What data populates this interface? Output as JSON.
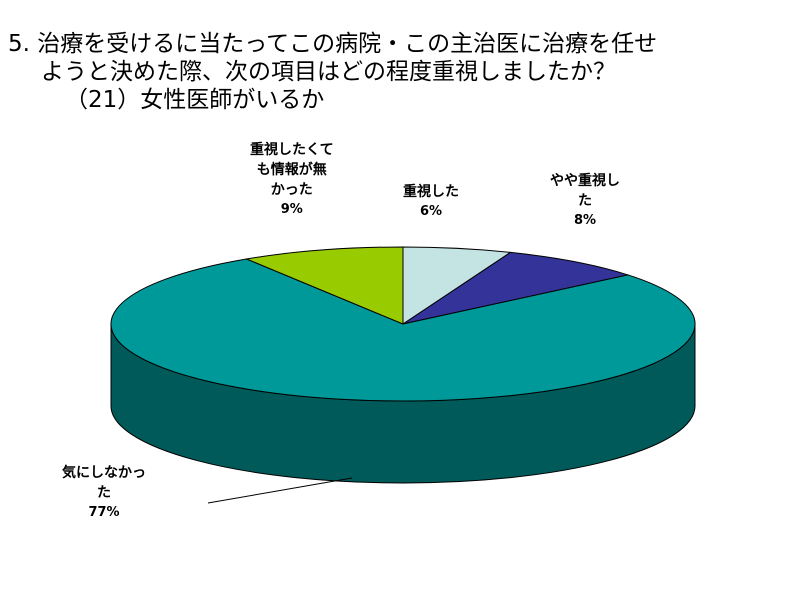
{
  "title": {
    "line1": "5. 治療を受けるに当たってこの病院・この主治医に治療を任せ",
    "line2": "ようと決めた際、次の項目はどの程度重視しましたか？",
    "line3": "（21）女性医師がいるか"
  },
  "chart_data": {
    "type": "pie",
    "style": "3d",
    "categories": [
      "重視した",
      "やや重視した",
      "気にしなかった",
      "重視したくても情報が無かった"
    ],
    "values": [
      6,
      8,
      77,
      9
    ],
    "value_labels": [
      "6%",
      "8%",
      "77%",
      "9%"
    ],
    "colors": [
      "#C4E4E4",
      "#333399",
      "#009999",
      "#99CC00"
    ],
    "side_colors": [
      "#7FA8A8",
      "#1E1E66",
      "#005A5A",
      "#5E8000"
    ],
    "label_lines": {
      "s0": [
        "重視した"
      ],
      "s1": [
        "やや重視し",
        "た"
      ],
      "s2": [
        "気にしなかっ",
        "た"
      ],
      "s3": [
        "重視したくて",
        "も情報が無",
        "かった"
      ]
    }
  }
}
